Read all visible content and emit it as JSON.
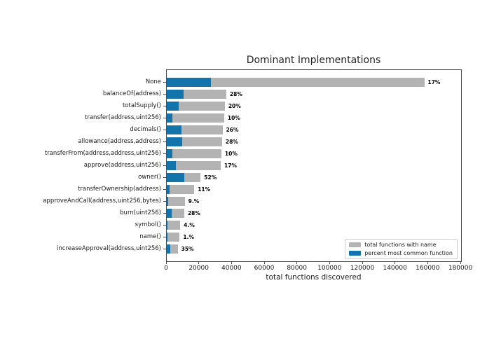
{
  "chart_data": {
    "type": "bar",
    "orientation": "horizontal",
    "title": "Dominant Implementations",
    "xlabel": "total functions discovered",
    "xlim": [
      0,
      180000
    ],
    "grid": false,
    "x_tick_values": [
      0,
      20000,
      40000,
      60000,
      80000,
      100000,
      120000,
      140000,
      160000,
      180000
    ],
    "x_tick_labels": [
      "0",
      "20000",
      "40000",
      "60000",
      "80000",
      "100000",
      "120000",
      "140000",
      "160000",
      "180000"
    ],
    "categories": [
      "None",
      "balanceOf(address)",
      "totalSupply()",
      "transfer(address,uint256)",
      "decimals()",
      "allowance(address,address)",
      "transferFrom(address,address,uint256)",
      "approve(address,uint256)",
      "owner()",
      "transferOwnership(address)",
      "approveAndCall(address,uint256,bytes)",
      "burn(uint256)",
      "symbol()",
      "name()",
      "increaseApproval(address,uint256)"
    ],
    "series": [
      {
        "name": "total functions with name",
        "color": "#b3b3b3",
        "values": [
          157500,
          36400,
          35500,
          35100,
          34100,
          33800,
          33400,
          33000,
          20700,
          16800,
          11000,
          10700,
          8200,
          7900,
          6700
        ]
      },
      {
        "name": "percent most common function",
        "color": "#1374ab",
        "values": [
          26800,
          10200,
          7100,
          3500,
          8900,
          9500,
          3300,
          5600,
          10800,
          1800,
          1000,
          3000,
          330,
          80,
          2350
        ]
      }
    ],
    "bar_labels": [
      "17%",
      "28%",
      "20%",
      "10%",
      "26%",
      "28%",
      "10%",
      "17%",
      "52%",
      "11%",
      "9.%",
      "28%",
      "4.%",
      "1.%",
      "35%"
    ],
    "legend": {
      "position": "lower right",
      "entries": [
        {
          "label": "total functions with name",
          "color": "#b3b3b3"
        },
        {
          "label": "percent most common function",
          "color": "#1374ab"
        }
      ]
    }
  },
  "colors": {
    "background": "#ffffff",
    "spine": "#4d4d4d",
    "text": "#1a1a1a"
  }
}
